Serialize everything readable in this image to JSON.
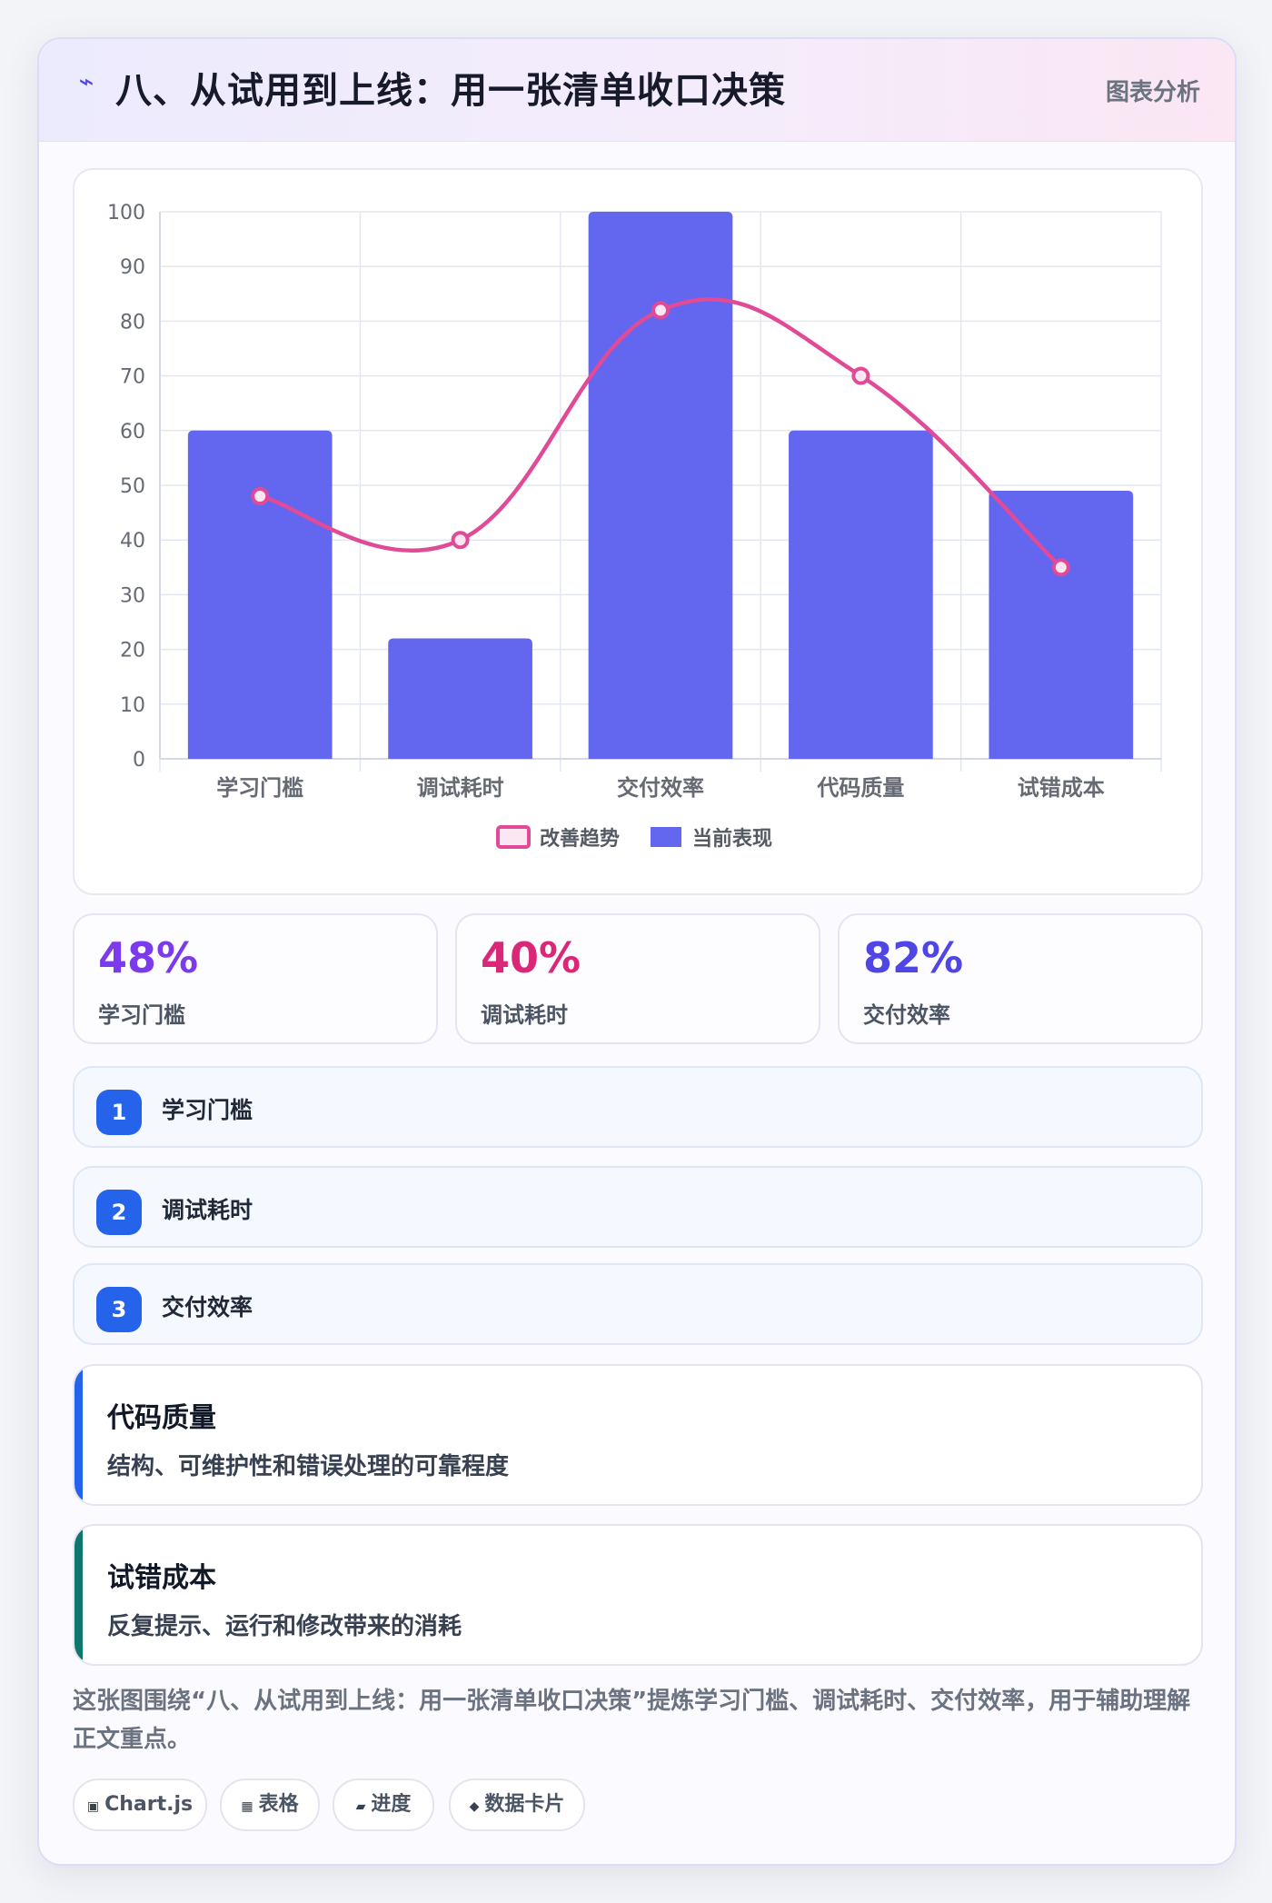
{
  "header": {
    "icon": "chart-icon",
    "title": "八、从试用到上线：用一张清单收口决策",
    "link_label": "图表分析"
  },
  "chart_data": {
    "type": "bar",
    "categories": [
      "学习门槛",
      "调试耗时",
      "交付效率",
      "代码质量",
      "试错成本"
    ],
    "series": [
      {
        "name": "改善趋势",
        "type": "line",
        "values": [
          48,
          40,
          82,
          70,
          35
        ],
        "color": "#e04a97"
      },
      {
        "name": "当前表现",
        "type": "bar",
        "values": [
          60,
          22,
          100,
          60,
          49
        ],
        "color": "#6366ee"
      }
    ],
    "ylim": [
      0,
      100
    ],
    "yticks": [
      0,
      10,
      20,
      30,
      40,
      50,
      60,
      70,
      80,
      90,
      100
    ],
    "grid": true,
    "legend": "bottom",
    "title": "",
    "xlabel": "",
    "ylabel": ""
  },
  "stats": [
    {
      "value": "48%",
      "label": "学习门槛",
      "color": "#7c3aed"
    },
    {
      "value": "40%",
      "label": "调试耗时",
      "color": "#db2777"
    },
    {
      "value": "82%",
      "label": "交付效率",
      "color": "#4f46e5"
    }
  ],
  "steps": [
    {
      "num": "1",
      "label": "学习门槛"
    },
    {
      "num": "2",
      "label": "调试耗时"
    },
    {
      "num": "3",
      "label": "交付效率"
    }
  ],
  "notes": [
    {
      "title": "代码质量",
      "desc": "结构、可维护性和错误处理的可靠程度",
      "accent": "#2563eb"
    },
    {
      "title": "试错成本",
      "desc": "反复提示、运行和修改带来的消耗",
      "accent": "#0f766e"
    }
  ],
  "summary": "这张图围绕“八、从试用到上线：用一张清单收口决策”提炼学习门槛、调试耗时、交付效率，用于辅助理解正文重点。",
  "tags": [
    {
      "icon": "chart-icon",
      "glyph": "▣",
      "label": "Chart.js"
    },
    {
      "icon": "table-icon",
      "glyph": "▦",
      "label": "表格"
    },
    {
      "icon": "progress-icon",
      "glyph": "▰",
      "label": "进度"
    },
    {
      "icon": "diamond-icon",
      "glyph": "◆",
      "label": "数据卡片"
    }
  ]
}
